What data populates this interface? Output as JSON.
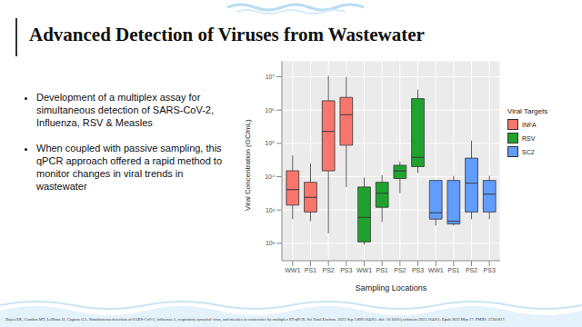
{
  "title": "Advanced Detection of Viruses from Wastewater",
  "bullets": [
    "Development of a multiplex assay for simultaneous detection of SARS-CoV-2, Influenza, RSV & Measles",
    "When coupled with passive sampling, this qPCR approach offered a rapid method to monitor changes in viral trends in wastewater"
  ],
  "citation": "Hayes EK, Gouthro MT, LeBlanc JJ, Gagnon GA. Simultaneous detection of SARS-CoV-2, influenza A, respiratory syncytial virus, and measles in wastewater by multiplex RT-qPCR. Sci Total Environ. 2023 Sep 1;889:164261. doi: 10.1016/j.scitotenv.2023.164261. Epub 2023 May 17. PMID: 37201817.",
  "chart_data": {
    "type": "box",
    "x_label": "Sampling Locations",
    "y_label": "Viral Concentration (GC/mL)",
    "legend_title": "Viral Targets",
    "legend": "right",
    "log": "y",
    "grid": true,
    "categories": [
      "WW1",
      "PS1",
      "PS2",
      "PS3",
      "WW1",
      "PS1",
      "PS2",
      "PS3",
      "WW1",
      "PS1",
      "PS2",
      "PS3"
    ],
    "ylim": [
      30,
      30000000
    ],
    "yticks": [
      {
        "value": 100,
        "label": "10²"
      },
      {
        "value": 1000,
        "label": "10³"
      },
      {
        "value": 10000,
        "label": "10⁴"
      },
      {
        "value": 100000,
        "label": "10⁵"
      },
      {
        "value": 1000000,
        "label": "10⁶"
      },
      {
        "value": 10000000,
        "label": "10⁷"
      }
    ],
    "series": [
      {
        "name": "INFA",
        "color": "#F8766D",
        "values": [
          {
            "min": 530,
            "q1": 1400,
            "median": 4100,
            "q3": 15000,
            "max": 44000
          },
          {
            "min": 460,
            "q1": 870,
            "median": 2400,
            "q3": 6800,
            "max": 25000
          },
          {
            "min": 200,
            "q1": 15000,
            "median": 230000,
            "q3": 1900000,
            "max": 10700000
          },
          {
            "min": 4900,
            "q1": 88000,
            "median": 730000,
            "q3": 2400000,
            "max": 10000000
          },
          null,
          null,
          null,
          null,
          null,
          null,
          null,
          null
        ]
      },
      {
        "name": "RSV",
        "color": "#1FA22E",
        "values": [
          null,
          null,
          null,
          null,
          {
            "min": 90,
            "q1": 110,
            "median": 600,
            "q3": 4900,
            "max": 9400
          },
          {
            "min": 440,
            "q1": 1200,
            "median": 3200,
            "q3": 6800,
            "max": 11000
          },
          {
            "min": 3200,
            "q1": 8800,
            "median": 15000,
            "q3": 22000,
            "max": 28000
          },
          {
            "min": 13000,
            "q1": 20000,
            "median": 38000,
            "q3": 2200000,
            "max": 4100000
          },
          null,
          null,
          null,
          null
        ]
      },
      {
        "name": "SC2",
        "color": "#619CFF",
        "values": [
          null,
          null,
          null,
          null,
          null,
          null,
          null,
          null,
          {
            "min": 340,
            "q1": 530,
            "median": 830,
            "q3": 7700,
            "max": 7700
          },
          {
            "min": 340,
            "q1": 380,
            "median": 460,
            "q3": 7700,
            "max": 10500
          },
          {
            "min": 530,
            "q1": 870,
            "median": 6400,
            "q3": 36000,
            "max": 120000
          },
          {
            "min": 530,
            "q1": 870,
            "median": 3000,
            "q3": 7700,
            "max": 10500
          }
        ]
      }
    ]
  }
}
